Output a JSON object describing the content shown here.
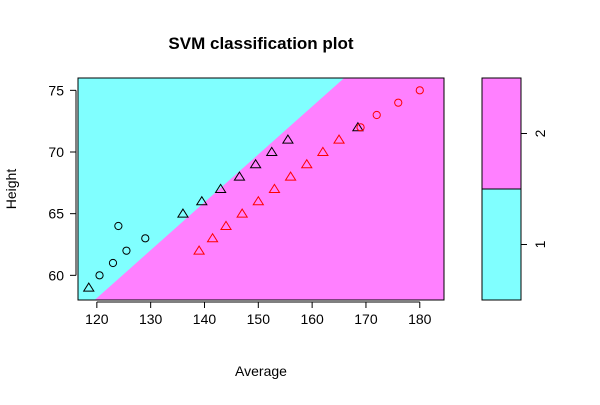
{
  "chart_data": {
    "type": "scatter",
    "title": "SVM classification plot",
    "xlabel": "Average",
    "ylabel": "Height",
    "xlim": [
      116.5,
      184.5
    ],
    "ylim": [
      58,
      76
    ],
    "x_ticks": [
      120,
      130,
      140,
      150,
      160,
      170,
      180
    ],
    "y_ticks": [
      60,
      65,
      70,
      75
    ],
    "grid": false,
    "colors": {
      "class_1_region": "#80FFFF",
      "class_2_region": "#FF80FF",
      "class_1_point": "#000000",
      "class_2_point": "#FF0000"
    },
    "decision_boundary": [
      {
        "x": 116.5,
        "y": 56.8
      },
      {
        "x": 184.5,
        "y": 83.2
      }
    ],
    "legend": {
      "position": "right",
      "levels": [
        {
          "label": "1",
          "color": "#80FFFF"
        },
        {
          "label": "2",
          "color": "#FF80FF"
        }
      ]
    },
    "series": [
      {
        "class": "1",
        "color": "#000000",
        "points": [
          {
            "x": 118.5,
            "y": 59,
            "marker": "triangle"
          },
          {
            "x": 120.5,
            "y": 60,
            "marker": "circle"
          },
          {
            "x": 123,
            "y": 61,
            "marker": "circle"
          },
          {
            "x": 125.5,
            "y": 62,
            "marker": "circle"
          },
          {
            "x": 124,
            "y": 64,
            "marker": "circle"
          },
          {
            "x": 129,
            "y": 63,
            "marker": "circle"
          },
          {
            "x": 136,
            "y": 65,
            "marker": "triangle"
          },
          {
            "x": 139.5,
            "y": 66,
            "marker": "triangle"
          },
          {
            "x": 143,
            "y": 67,
            "marker": "triangle"
          },
          {
            "x": 146.5,
            "y": 68,
            "marker": "triangle"
          },
          {
            "x": 149.5,
            "y": 69,
            "marker": "triangle"
          },
          {
            "x": 152.5,
            "y": 70,
            "marker": "triangle"
          },
          {
            "x": 155.5,
            "y": 71,
            "marker": "triangle"
          },
          {
            "x": 168.5,
            "y": 72,
            "marker": "triangle"
          }
        ]
      },
      {
        "class": "2",
        "color": "#FF0000",
        "points": [
          {
            "x": 139,
            "y": 62,
            "marker": "triangle"
          },
          {
            "x": 141.5,
            "y": 63,
            "marker": "triangle"
          },
          {
            "x": 144,
            "y": 64,
            "marker": "triangle"
          },
          {
            "x": 147,
            "y": 65,
            "marker": "triangle"
          },
          {
            "x": 150,
            "y": 66,
            "marker": "triangle"
          },
          {
            "x": 153,
            "y": 67,
            "marker": "triangle"
          },
          {
            "x": 156,
            "y": 68,
            "marker": "triangle"
          },
          {
            "x": 159,
            "y": 69,
            "marker": "triangle"
          },
          {
            "x": 162,
            "y": 70,
            "marker": "triangle"
          },
          {
            "x": 165,
            "y": 71,
            "marker": "triangle"
          },
          {
            "x": 169,
            "y": 72,
            "marker": "circle"
          },
          {
            "x": 172,
            "y": 73,
            "marker": "circle"
          },
          {
            "x": 176,
            "y": 74,
            "marker": "circle"
          },
          {
            "x": 180,
            "y": 75,
            "marker": "circle"
          }
        ]
      }
    ]
  }
}
